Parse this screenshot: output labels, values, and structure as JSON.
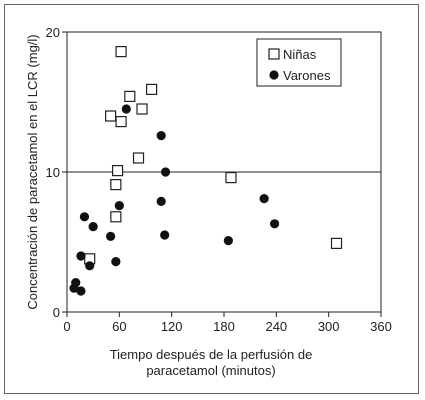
{
  "chart_data": {
    "type": "scatter",
    "title": "",
    "xlabel_lines": [
      "Tiempo después de la perfusión de",
      "paracetamol (minutos)"
    ],
    "ylabel": "Concentración de paracetamol en el LCR (mg/l)",
    "xlim": [
      0,
      360
    ],
    "ylim": [
      0,
      20
    ],
    "xticks": [
      "0",
      "60",
      "120",
      "180",
      "240",
      "300",
      "360"
    ],
    "yticks": [
      "0",
      "10",
      "20"
    ],
    "reference_line_y": 10,
    "legend_position": "top-right",
    "series": [
      {
        "name": "Niñas",
        "marker": "open-square",
        "points": [
          [
            62,
            18.6
          ],
          [
            97,
            15.9
          ],
          [
            72,
            15.4
          ],
          [
            50,
            14.0
          ],
          [
            86,
            14.5
          ],
          [
            62,
            13.6
          ],
          [
            82,
            11.0
          ],
          [
            58,
            10.1
          ],
          [
            56,
            9.1
          ],
          [
            188,
            9.6
          ],
          [
            56,
            6.8
          ],
          [
            26,
            3.8
          ],
          [
            309,
            4.9
          ]
        ]
      },
      {
        "name": "Varones",
        "marker": "filled-circle",
        "points": [
          [
            68,
            14.5
          ],
          [
            108,
            12.6
          ],
          [
            113,
            10.0
          ],
          [
            20,
            6.8
          ],
          [
            30,
            6.1
          ],
          [
            60,
            7.6
          ],
          [
            108,
            7.9
          ],
          [
            226,
            8.1
          ],
          [
            238,
            6.3
          ],
          [
            50,
            5.4
          ],
          [
            112,
            5.5
          ],
          [
            185,
            5.1
          ],
          [
            16,
            4.0
          ],
          [
            26,
            3.3
          ],
          [
            56,
            3.6
          ],
          [
            10,
            2.1
          ],
          [
            8,
            1.7
          ],
          [
            16,
            1.5
          ]
        ]
      }
    ]
  }
}
